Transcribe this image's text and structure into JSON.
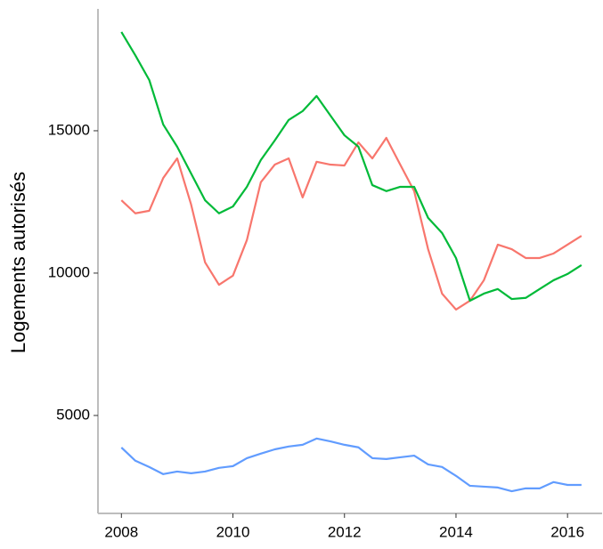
{
  "chart_data": {
    "type": "line",
    "y_label": "Logements autorisés",
    "x": [
      2008,
      2008.25,
      2008.5,
      2008.75,
      2009,
      2009.25,
      2009.5,
      2009.75,
      2010,
      2010.25,
      2010.5,
      2010.75,
      2011,
      2011.25,
      2011.5,
      2011.75,
      2012,
      2012.25,
      2012.5,
      2012.75,
      2013,
      2013.25,
      2013.5,
      2013.75,
      2014,
      2014.25,
      2014.5,
      2014.75,
      2015,
      2015.25,
      2015.5,
      2015.75,
      2016,
      2016.25
    ],
    "series": [
      {
        "color": "#f8766d",
        "values": [
          12560,
          12100,
          12190,
          13340,
          14030,
          12410,
          10380,
          9590,
          9910,
          11160,
          13190,
          13810,
          14030,
          12660,
          13910,
          13810,
          13780,
          14590,
          14030,
          14750,
          13810,
          12880,
          10840,
          9280,
          8720,
          9030,
          9750,
          11000,
          10840,
          10530,
          10530,
          10690,
          11000,
          11310
        ]
      },
      {
        "color": "#00ba38",
        "values": [
          18470,
          17650,
          16780,
          15220,
          14440,
          13500,
          12560,
          12100,
          12340,
          13030,
          13970,
          14660,
          15380,
          15690,
          16220,
          15530,
          14840,
          14440,
          13090,
          12880,
          13030,
          13030,
          11940,
          11410,
          10530,
          9030,
          9280,
          9440,
          9090,
          9130,
          9440,
          9750,
          9970,
          10280
        ]
      },
      {
        "color": "#619cff",
        "values": [
          3875,
          3410,
          3190,
          2940,
          3030,
          2970,
          3030,
          3160,
          3220,
          3500,
          3660,
          3810,
          3910,
          3970,
          4190,
          4090,
          3970,
          3880,
          3500,
          3470,
          3530,
          3590,
          3280,
          3190,
          2880,
          2530,
          2500,
          2470,
          2340,
          2440,
          2440,
          2660,
          2560,
          2560
        ]
      }
    ],
    "xlim": [
      2007.58,
      2016.62
    ],
    "xticks": [
      2008,
      2010,
      2012,
      2014,
      2016
    ],
    "ylim": [
      1560,
      19280
    ],
    "yticks": [
      5000,
      10000,
      15000
    ]
  }
}
